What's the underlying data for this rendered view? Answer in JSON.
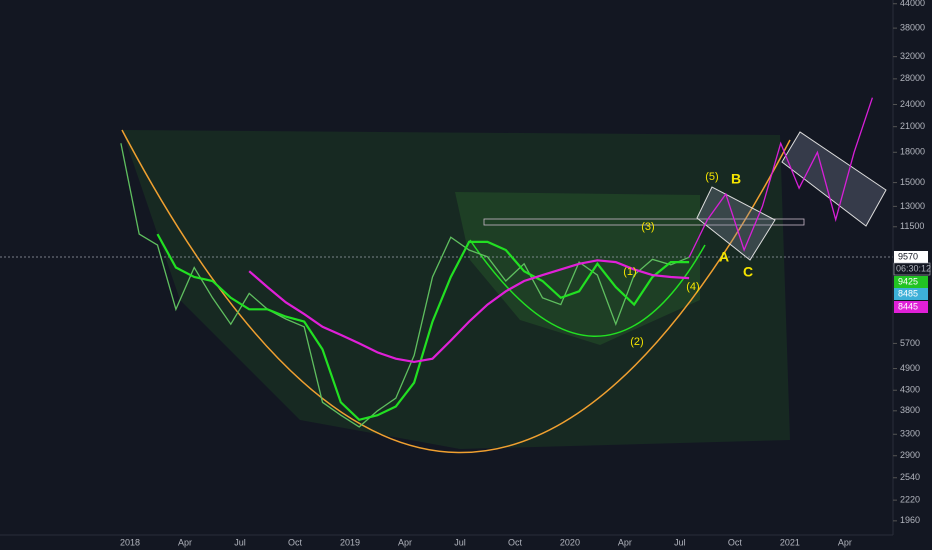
{
  "chart_data": {
    "type": "line",
    "categories": [
      null,
      "2018",
      null,
      null,
      "Apr",
      null,
      null,
      "Jul",
      null,
      null,
      "Oct",
      null,
      null,
      "2019",
      null,
      null,
      "Apr",
      null,
      null,
      "Jul",
      null,
      null,
      "Oct",
      null,
      null,
      "2020",
      null,
      null,
      "Apr",
      null,
      null,
      "Jul",
      null,
      null,
      "Oct",
      null,
      null,
      "2021",
      null,
      null,
      "Apr",
      null
    ],
    "log_scale": true,
    "grid": false,
    "ylim": [
      1800,
      45000
    ],
    "yticks": [
      44000,
      38000,
      32000,
      28000,
      24000,
      21000,
      18000,
      15000,
      13000,
      11500,
      5700,
      4900,
      4300,
      3800,
      3300,
      2900,
      2540,
      2220,
      1960
    ],
    "series": [
      {
        "color": "#5fbf5f",
        "values": [
          19000,
          11000,
          10300,
          7000,
          9000,
          7500,
          6400,
          7700,
          7000,
          6600,
          6300,
          4000,
          3700,
          3450,
          3800,
          4100,
          5300,
          8500,
          10800,
          10000,
          9600,
          8300,
          9200,
          7500,
          7200,
          9300,
          8600,
          6400,
          8600,
          9450,
          9150,
          9570,
          null,
          null,
          null,
          null,
          null,
          null,
          null,
          null,
          null,
          null
        ]
      },
      {
        "color": "#22e022",
        "values": [
          null,
          null,
          11000,
          9000,
          8500,
          8300,
          7500,
          7000,
          7000,
          6700,
          6500,
          5500,
          4000,
          3600,
          3700,
          3900,
          4500,
          6500,
          8500,
          10500,
          10500,
          10000,
          8800,
          8300,
          7500,
          7800,
          9200,
          8000,
          7200,
          8500,
          9300,
          9300,
          null,
          null,
          null,
          null,
          null,
          null,
          null,
          null,
          null,
          null
        ]
      },
      {
        "color": "#e020d8",
        "values": [
          null,
          null,
          null,
          null,
          null,
          null,
          null,
          8800,
          8000,
          7300,
          6800,
          6300,
          6000,
          5700,
          5400,
          5200,
          5100,
          5200,
          5800,
          6500,
          7200,
          7800,
          8300,
          8600,
          8900,
          9200,
          9400,
          9300,
          8900,
          8600,
          8500,
          8445,
          null,
          null,
          null,
          null,
          null,
          null,
          null,
          null,
          null,
          null
        ]
      },
      {
        "color": "#d81fd8",
        "values": [
          null,
          null,
          null,
          null,
          null,
          null,
          null,
          null,
          null,
          null,
          null,
          null,
          null,
          null,
          null,
          null,
          null,
          null,
          null,
          null,
          null,
          null,
          null,
          null,
          null,
          null,
          null,
          null,
          null,
          null,
          null,
          9570,
          12000,
          14000,
          10000,
          13000,
          19000,
          14500,
          18000,
          12000,
          18000,
          25000
        ]
      }
    ],
    "price_tags": [
      {
        "value": 9570,
        "color": "#ffffff"
      },
      {
        "value": 9425,
        "color": "#22c322"
      },
      {
        "value": 8485,
        "color": "#3db0d8"
      },
      {
        "value": 8445,
        "color": "#e020d8"
      }
    ],
    "countdown": "06:30:12",
    "annotations": [
      "(5)",
      "B",
      "(3)",
      "(1)",
      "(2)",
      "(4)",
      "A",
      "C"
    ]
  }
}
